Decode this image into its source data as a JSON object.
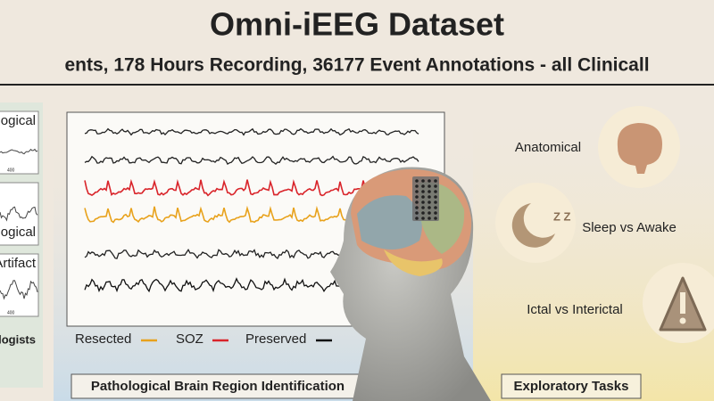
{
  "header": {
    "title": "Omni-iEEG Dataset",
    "subtitle": "ents, 178 Hours Recording, 36177 Event Annotations - all Clinicall"
  },
  "left_panel": {
    "labels": [
      "ogical",
      "ogical",
      "Artifact"
    ],
    "axis_labels": [
      "400",
      "400"
    ],
    "footer": "logists"
  },
  "center_panel": {
    "legend": [
      "Resected",
      "SOZ",
      "Preserved"
    ],
    "caption": "Pathological Brain Region Identification"
  },
  "right_panel": {
    "tasks": [
      "Anatomical",
      "Sleep vs Awake",
      "Ictal vs Interictal"
    ],
    "caption": "Exploratory Tasks"
  }
}
